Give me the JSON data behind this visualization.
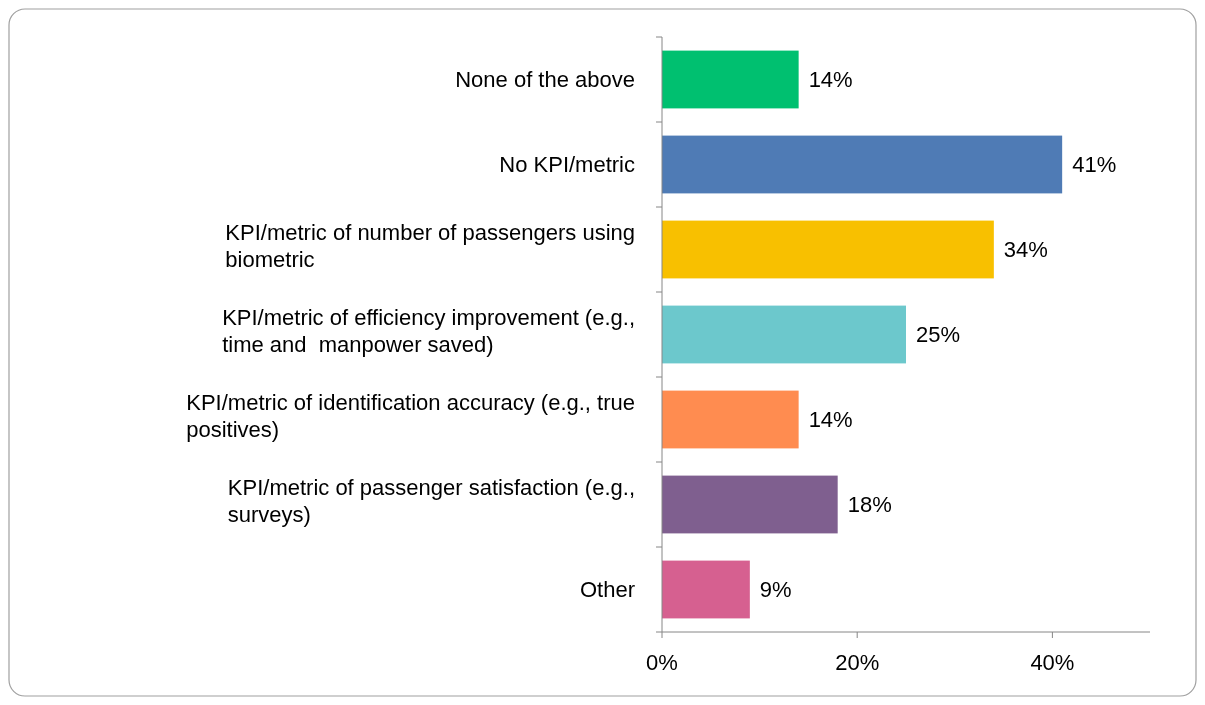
{
  "chart_data": {
    "type": "bar",
    "orientation": "horizontal",
    "categories": [
      "None of the above",
      "No KPI/metric",
      "KPI/metric of number of passengers using biometric",
      "KPI/metric of efficiency improvement (e.g., time and  manpower saved)",
      "KPI/metric of identification accuracy (e.g., true positives)",
      "KPI/metric of passenger satisfaction (e.g., surveys)",
      "Other"
    ],
    "values": [
      14,
      41,
      34,
      25,
      14,
      18,
      9
    ],
    "colors": [
      "#00c070",
      "#4f7bb5",
      "#f8c000",
      "#6cc8cc",
      "#ff8c50",
      "#7f5f8f",
      "#d66090"
    ],
    "value_labels": [
      "14%",
      "41%",
      "34%",
      "25%",
      "14%",
      "18%",
      "9%"
    ],
    "xlim": [
      0,
      50
    ],
    "xticks": [
      {
        "value": 0,
        "label": "0%"
      },
      {
        "value": 20,
        "label": "20%"
      },
      {
        "value": 40,
        "label": "40%"
      }
    ],
    "grid": false
  }
}
